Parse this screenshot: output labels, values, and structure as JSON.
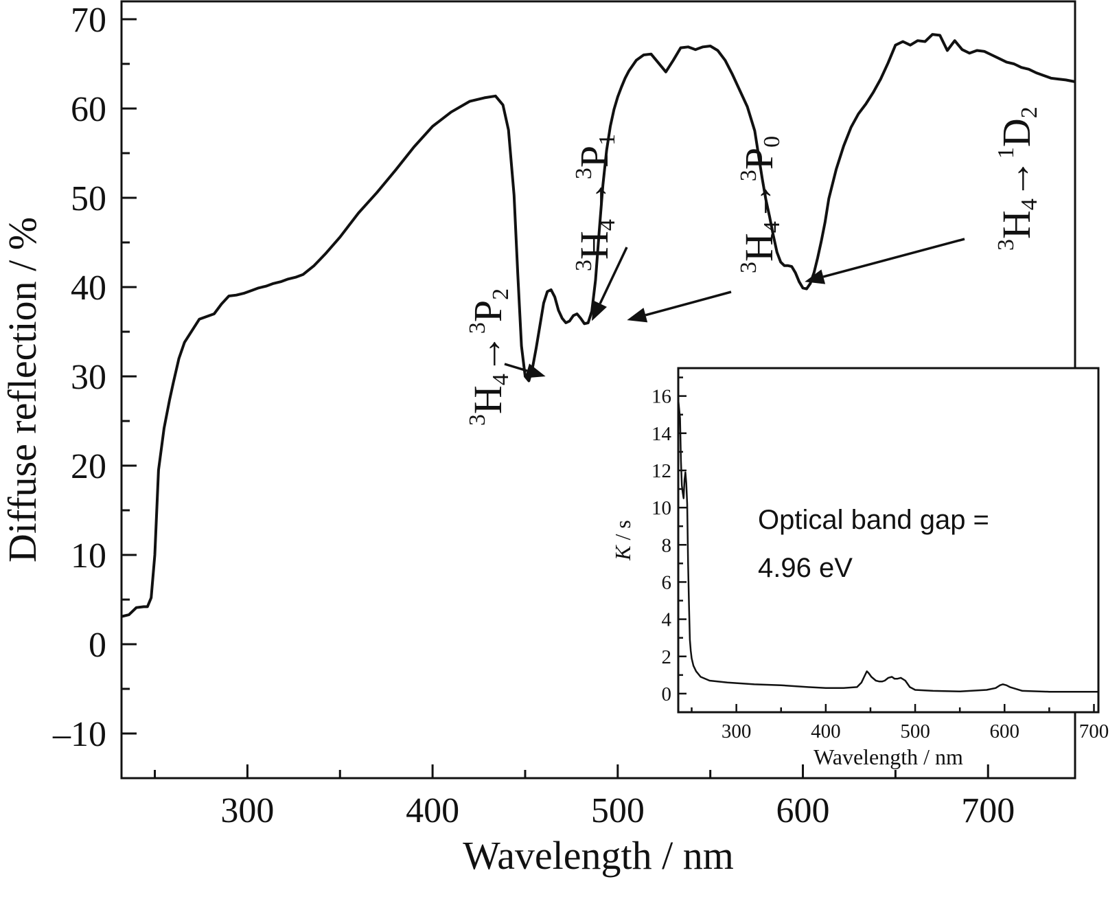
{
  "chart_data": [
    {
      "type": "line",
      "xlabel": "Wavelength / nm",
      "ylabel": "Diffuse reflection / %",
      "xlim": [
        232,
        747
      ],
      "ylim": [
        -15,
        72
      ],
      "x_ticks": [
        300,
        400,
        500,
        600,
        700
      ],
      "y_ticks": [
        -10,
        0,
        10,
        20,
        30,
        40,
        50,
        60,
        70
      ],
      "y_tick_labels": [
        "–10",
        "0",
        "10",
        "20",
        "30",
        "40",
        "50",
        "60",
        "70"
      ],
      "grid": false,
      "series": [
        {
          "x": [
            232,
            236,
            240,
            244,
            246,
            248,
            250,
            252,
            255,
            258,
            260,
            263,
            266,
            270,
            274,
            278,
            282,
            286,
            290,
            294,
            298,
            302,
            306,
            310,
            314,
            318,
            322,
            326,
            330,
            336,
            342,
            350,
            360,
            370,
            380,
            390,
            400,
            410,
            420,
            428,
            434,
            438,
            441,
            444,
            446,
            448,
            450,
            452,
            454,
            456,
            458,
            460,
            462,
            464,
            466,
            468,
            470,
            472,
            474,
            476,
            478,
            480,
            482,
            484,
            486,
            488,
            490,
            492,
            494,
            496,
            498,
            500,
            502,
            504,
            506,
            508,
            510,
            514,
            518,
            522,
            526,
            530,
            534,
            538,
            542,
            546,
            550,
            554,
            558,
            562,
            566,
            570,
            574,
            578,
            580,
            582,
            584,
            586,
            588,
            590,
            592,
            594,
            596,
            598,
            600,
            602,
            604,
            606,
            608,
            610,
            612,
            614,
            618,
            622,
            626,
            630,
            634,
            638,
            642,
            646,
            650,
            654,
            658,
            662,
            666,
            670,
            674,
            678,
            682,
            686,
            690,
            694,
            698,
            702,
            706,
            710,
            714,
            718,
            722,
            726,
            730,
            734,
            738,
            742,
            747
          ],
          "y": [
            3.1,
            3.3,
            4.1,
            4.2,
            4.2,
            5.2,
            10.0,
            19.5,
            24.2,
            27.4,
            29.3,
            32.0,
            33.8,
            35.1,
            36.4,
            36.7,
            37.0,
            38.1,
            39.0,
            39.1,
            39.3,
            39.6,
            39.9,
            40.1,
            40.4,
            40.6,
            40.9,
            41.1,
            41.4,
            42.4,
            43.7,
            45.6,
            48.3,
            50.6,
            53.1,
            55.7,
            58.0,
            59.6,
            60.8,
            61.2,
            61.4,
            60.4,
            57.6,
            50.3,
            41.5,
            33.4,
            30.0,
            29.5,
            31.0,
            33.2,
            35.7,
            38.2,
            39.5,
            39.7,
            38.9,
            37.4,
            36.5,
            36.0,
            36.2,
            36.8,
            37.0,
            36.5,
            35.9,
            36.0,
            37.3,
            40.8,
            46.2,
            51.4,
            55.3,
            58.0,
            59.9,
            61.3,
            62.4,
            63.4,
            64.2,
            64.8,
            65.4,
            66.0,
            66.1,
            65.1,
            64.1,
            65.4,
            66.8,
            66.9,
            66.6,
            66.9,
            67.0,
            66.5,
            65.4,
            63.8,
            62.0,
            60.2,
            57.5,
            52.2,
            49.8,
            47.9,
            45.8,
            43.9,
            42.8,
            42.4,
            42.4,
            42.3,
            41.6,
            40.6,
            39.9,
            39.8,
            40.4,
            41.6,
            43.3,
            45.2,
            47.3,
            49.9,
            53.2,
            55.8,
            57.9,
            59.4,
            60.5,
            61.8,
            63.3,
            65.1,
            67.1,
            67.5,
            67.1,
            67.6,
            67.5,
            68.3,
            68.2,
            66.5,
            67.6,
            66.6,
            66.2,
            66.5,
            66.4,
            66.0,
            65.6,
            65.2,
            65.0,
            64.6,
            64.4,
            64.0,
            63.7,
            63.4,
            63.3,
            63.2,
            63.0
          ]
        }
      ],
      "annotations": [
        {
          "upper": "3",
          "main1": "H",
          "lower1": "4",
          "arrow": "→",
          "upper2": "3",
          "main2": "P",
          "lower2": "2",
          "points_to_x": 461,
          "points_to_y": 30.0
        },
        {
          "upper": "3",
          "main1": "H",
          "lower1": "4",
          "arrow": "→",
          "upper2": "3",
          "main2": "P",
          "lower2": "1",
          "points_to_x": 486,
          "points_to_y": 36.2
        },
        {
          "upper": "3",
          "main1": "H",
          "lower1": "4",
          "arrow": "→",
          "upper2": "3",
          "main2": "P",
          "lower2": "0",
          "points_to_x": 505,
          "points_to_y": 36.3
        },
        {
          "upper": "3",
          "main1": "H",
          "lower1": "4",
          "arrow": "→",
          "upper2": "1",
          "main2": "D",
          "lower2": "2",
          "points_to_x": 601,
          "points_to_y": 40.6
        }
      ]
    },
    {
      "type": "line",
      "xlabel": "Wavelength / nm",
      "ylabel": "K / s",
      "ylabel_parts": {
        "italic": "K",
        "rest": " / s"
      },
      "xlim": [
        235,
        705
      ],
      "ylim": [
        -1,
        17.5
      ],
      "x_ticks": [
        300,
        400,
        500,
        600,
        700
      ],
      "y_ticks": [
        0,
        2,
        4,
        6,
        8,
        10,
        12,
        14,
        16
      ],
      "text": [
        "Optical band gap =",
        "4.96 eV"
      ],
      "series": [
        {
          "x": [
            235,
            237,
            238,
            239,
            240,
            241,
            242,
            243,
            244,
            245,
            246,
            247,
            248,
            249,
            250,
            252,
            255,
            260,
            270,
            290,
            320,
            350,
            380,
            400,
            420,
            435,
            440,
            443,
            446,
            448,
            451,
            456,
            460,
            463,
            466,
            470,
            474,
            477,
            480,
            484,
            489,
            494,
            500,
            520,
            550,
            580,
            590,
            595,
            598,
            602,
            606,
            620,
            650,
            705
          ],
          "y": [
            15.8,
            14.8,
            12.5,
            11.2,
            10.8,
            10.5,
            11.5,
            11.9,
            11.3,
            10.2,
            7.0,
            4.8,
            2.9,
            2.3,
            1.9,
            1.5,
            1.2,
            0.9,
            0.7,
            0.6,
            0.5,
            0.45,
            0.35,
            0.3,
            0.3,
            0.35,
            0.6,
            0.9,
            1.2,
            1.1,
            0.9,
            0.7,
            0.65,
            0.65,
            0.7,
            0.85,
            0.9,
            0.8,
            0.8,
            0.85,
            0.7,
            0.35,
            0.2,
            0.15,
            0.12,
            0.2,
            0.3,
            0.45,
            0.5,
            0.45,
            0.35,
            0.15,
            0.1,
            0.1
          ]
        }
      ]
    }
  ]
}
